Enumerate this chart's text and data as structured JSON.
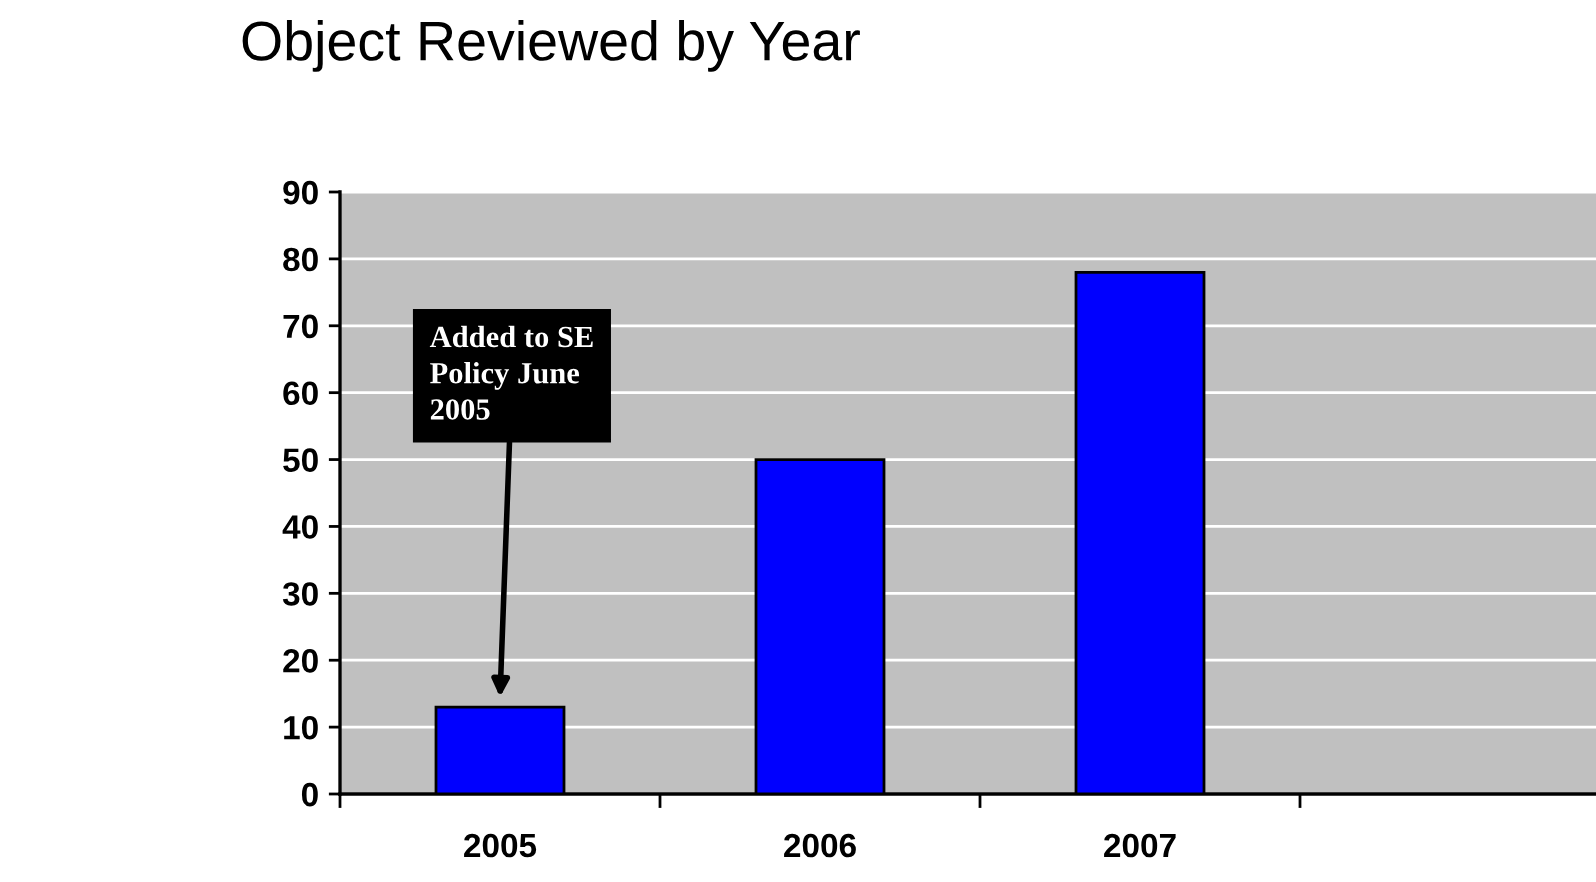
{
  "chart_data": {
    "type": "bar",
    "title": "Object Reviewed by Year",
    "categories": [
      "2005",
      "2006",
      "2007",
      null
    ],
    "values": [
      13,
      50,
      78,
      null
    ],
    "color": "#0000ff",
    "ylim": [
      0,
      90
    ],
    "yticks": [
      0,
      10,
      20,
      30,
      40,
      50,
      60,
      70,
      80,
      90
    ],
    "grid": "y",
    "annotations": [
      {
        "text": "Added to SE\nPolicy June\n2005",
        "x": "2005",
        "y": 13
      }
    ]
  }
}
